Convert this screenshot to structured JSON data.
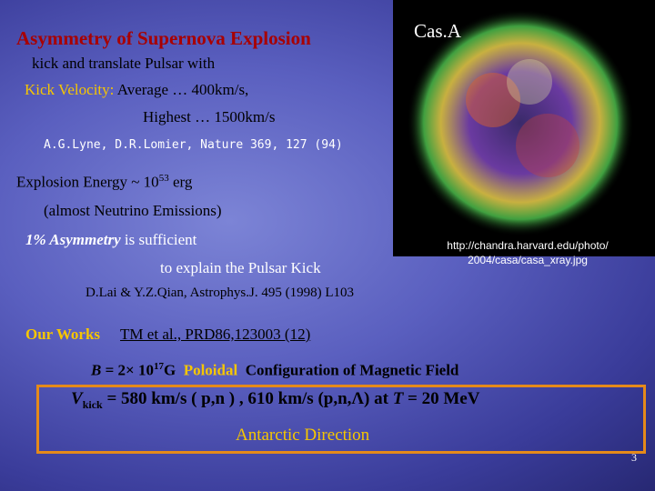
{
  "title": "Asymmetry of Supernova Explosion",
  "kick": {
    "line1": "kick and translate Pulsar with",
    "label": "Kick Velocity:",
    "average": "Average … 400km/s,",
    "highest": "Highest  … 1500km/s"
  },
  "reference1": "A.G.Lyne, D.R.Lomier, Nature 369, 127 (94)",
  "energy": {
    "text": "Explosion Energy ~ 10",
    "exponent": "53",
    "unit": " erg",
    "note": "(almost Neutrino Emissions)"
  },
  "asymmetry": {
    "emphasis": "1% Asymmetry",
    "rest": " is sufficient",
    "line2": "to explain the Pulsar Kick"
  },
  "reference2": "D.Lai & Y.Z.Qian, Astrophys.J. 495 (1998) L103",
  "our_works": {
    "label": "Our Works",
    "citation": "TM et al., PRD86,123003 (12)"
  },
  "field": {
    "symbol": "B",
    "value": " = 2× 10",
    "exponent": "17",
    "unit": "G",
    "highlight": "Poloidal",
    "rest": "Configuration of  Magnetic Field"
  },
  "result": {
    "symbol": "V",
    "subscript": "kick",
    "text": " = 580 km/s ( p,n ) ,   610 km/s  (p,n,Λ)   at ",
    "t_symbol": "T",
    "t_value": " = 20 MeV",
    "direction": "Antarctic  Direction"
  },
  "image": {
    "label": "Cas.A",
    "credit_line1": "http://chandra.harvard.edu/photo/",
    "credit_line2": "2004/casa/casa_xray.jpg"
  },
  "page_number": "3"
}
